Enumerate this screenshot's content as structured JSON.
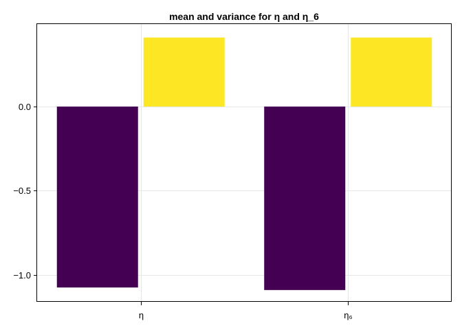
{
  "chart_data": {
    "type": "bar",
    "title": "mean and variance for η and η_6",
    "categories": [
      "η",
      "η₆"
    ],
    "series": [
      {
        "values": [
          -1.075,
          -1.09
        ],
        "color": "#440154"
      },
      {
        "values": [
          0.41,
          0.41
        ],
        "color": "#fde725"
      }
    ],
    "xlabel": "",
    "ylabel": "",
    "ylim": [
      -1.16,
      0.49
    ],
    "yticks": [
      0.0,
      -0.5,
      -1.0
    ],
    "ytick_labels": [
      "0.0",
      "−0.5",
      "−1.0"
    ],
    "grid": true,
    "legend": "none"
  }
}
